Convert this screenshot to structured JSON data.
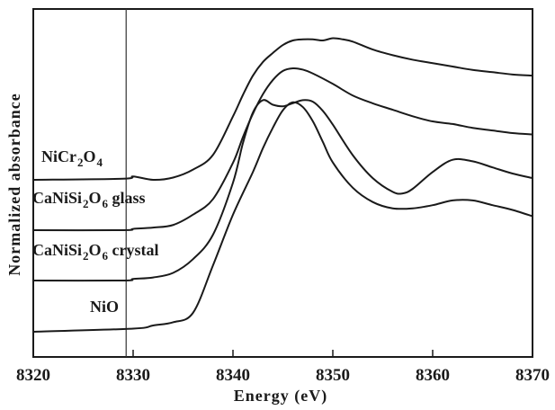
{
  "chart_data": {
    "type": "line",
    "xlabel": "Energy (eV)",
    "ylabel": "Normalized absorbance",
    "xlim": [
      8320,
      8370
    ],
    "x_ticks": [
      8320,
      8330,
      8340,
      8350,
      8360,
      8370
    ],
    "x_tick_labels": [
      "8320",
      "8330",
      "8340",
      "8350",
      "8360",
      "8370"
    ],
    "reference_line_x": 8329.3,
    "y_ticks": "none",
    "grid": false,
    "label_placement": "on-curve-left",
    "series": [
      {
        "name": "NiCr2O4",
        "label_parts": [
          {
            "t": "NiCr"
          },
          {
            "t": "2",
            "sub": true
          },
          {
            "t": "O"
          },
          {
            "t": "4",
            "sub": true
          }
        ],
        "x": [
          8320,
          8329,
          8330,
          8332,
          8334,
          8336,
          8338,
          8340,
          8341,
          8342,
          8343,
          8344,
          8345,
          8346,
          8347,
          8348,
          8349,
          8350,
          8351,
          8352,
          8354,
          8356,
          8358,
          8360,
          8362,
          8364,
          8366,
          8368,
          8370
        ],
        "y": [
          0.0,
          0.01,
          0.03,
          0.0,
          0.02,
          0.09,
          0.22,
          0.56,
          0.75,
          0.92,
          1.04,
          1.12,
          1.19,
          1.23,
          1.24,
          1.24,
          1.23,
          1.25,
          1.24,
          1.22,
          1.15,
          1.1,
          1.06,
          1.03,
          1.0,
          0.97,
          0.95,
          0.93,
          0.92
        ]
      },
      {
        "name": "CaNiSi2O6 glass",
        "label_parts": [
          {
            "t": "CaNiSi"
          },
          {
            "t": "2",
            "sub": true
          },
          {
            "t": "O"
          },
          {
            "t": "6",
            "sub": true
          },
          {
            "t": " glass"
          }
        ],
        "x": [
          8320,
          8329,
          8330,
          8332,
          8334,
          8336,
          8338,
          8340,
          8341,
          8342,
          8343,
          8344,
          8345,
          8346,
          8347,
          8348,
          8350,
          8352,
          8354,
          8356,
          8358,
          8360,
          8362,
          8364,
          8366,
          8368,
          8370
        ],
        "y": [
          0.0,
          0.0,
          0.01,
          0.02,
          0.04,
          0.12,
          0.24,
          0.52,
          0.72,
          0.9,
          1.05,
          1.16,
          1.23,
          1.25,
          1.24,
          1.21,
          1.13,
          1.04,
          0.98,
          0.93,
          0.88,
          0.84,
          0.82,
          0.79,
          0.77,
          0.75,
          0.74
        ]
      },
      {
        "name": "CaNiSi2O6 crystal",
        "label_parts": [
          {
            "t": "CaNiSi"
          },
          {
            "t": "2",
            "sub": true
          },
          {
            "t": "O"
          },
          {
            "t": "6",
            "sub": true
          },
          {
            "t": " crystal"
          }
        ],
        "x": [
          8320,
          8329,
          8330,
          8332,
          8334,
          8336,
          8338,
          8340,
          8341,
          8342,
          8343,
          8344,
          8345,
          8346,
          8347,
          8348,
          8349,
          8350,
          8352,
          8354,
          8356,
          8357,
          8358,
          8360,
          8362,
          8364,
          8366,
          8368,
          8370
        ],
        "y": [
          0.0,
          0.0,
          0.01,
          0.02,
          0.05,
          0.14,
          0.3,
          0.64,
          0.9,
          1.1,
          1.18,
          1.15,
          1.14,
          1.16,
          1.18,
          1.17,
          1.11,
          1.02,
          0.82,
          0.67,
          0.58,
          0.57,
          0.6,
          0.71,
          0.79,
          0.78,
          0.74,
          0.7,
          0.67
        ]
      },
      {
        "name": "NiO",
        "label_parts": [
          {
            "t": "NiO"
          }
        ],
        "x": [
          8320,
          8330,
          8332,
          8334,
          8336,
          8338,
          8340,
          8342,
          8343,
          8344,
          8345,
          8346,
          8347,
          8348,
          8349,
          8350,
          8352,
          8354,
          8356,
          8358,
          8360,
          8362,
          8364,
          8366,
          8368,
          8370
        ],
        "y": [
          0.0,
          0.02,
          0.04,
          0.06,
          0.12,
          0.42,
          0.74,
          1.01,
          1.16,
          1.29,
          1.4,
          1.45,
          1.42,
          1.33,
          1.2,
          1.07,
          0.91,
          0.82,
          0.78,
          0.78,
          0.8,
          0.83,
          0.83,
          0.8,
          0.77,
          0.73
        ]
      }
    ]
  }
}
